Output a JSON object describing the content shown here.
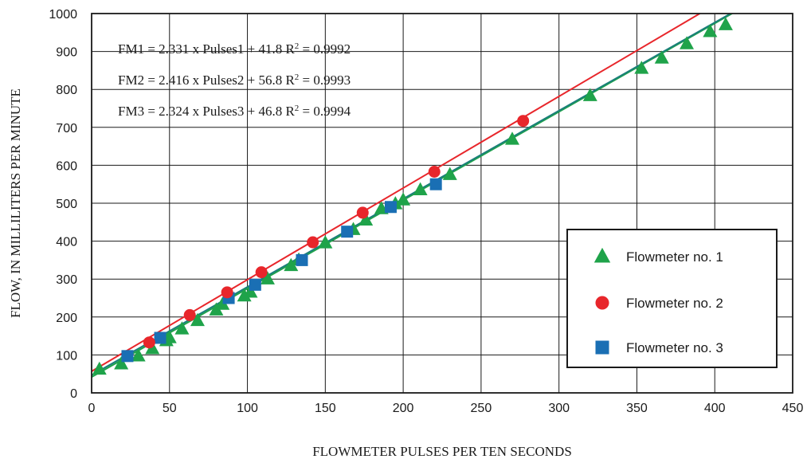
{
  "chart_data": {
    "type": "scatter",
    "title": "",
    "xlabel": "FLOWMETER PULSES PER TEN SECONDS",
    "ylabel": "FLOW, IN MILLILITERS PER MINUTE",
    "xlim": [
      0,
      450
    ],
    "ylim": [
      0,
      1000
    ],
    "x_ticks": [
      "0",
      "50",
      "100",
      "150",
      "200",
      "250",
      "300",
      "350",
      "400",
      "450"
    ],
    "y_ticks": [
      "0",
      "100",
      "200",
      "300",
      "400",
      "500",
      "600",
      "700",
      "800",
      "900",
      "1000"
    ],
    "grid": true,
    "legend_position": "bottom-right",
    "equations": [
      {
        "main": "FM1 = 2.331 x Pulses1 + 41.8  R",
        "sup": "2",
        "tail": " = 0.9992"
      },
      {
        "main": "FM2 = 2.416 x Pulses2 + 56.8  R",
        "sup": "2",
        "tail": " = 0.9993"
      },
      {
        "main": "FM3 = 2.324 x Pulses3 + 46.8  R",
        "sup": "2",
        "tail": " = 0.9994"
      }
    ],
    "series": [
      {
        "name": "Flowmeter no. 1",
        "marker": "triangle",
        "color": "#1fa34a",
        "fit": {
          "slope": 2.331,
          "intercept": 41.8
        },
        "fit_color": "#1fa34a",
        "points": [
          [
            5,
            62
          ],
          [
            19,
            76
          ],
          [
            30,
            97
          ],
          [
            39,
            116
          ],
          [
            48,
            137
          ],
          [
            50,
            145
          ],
          [
            58,
            168
          ],
          [
            68,
            190
          ],
          [
            80,
            218
          ],
          [
            84,
            233
          ],
          [
            98,
            255
          ],
          [
            102,
            265
          ],
          [
            113,
            300
          ],
          [
            128,
            335
          ],
          [
            133,
            350
          ],
          [
            150,
            395
          ],
          [
            168,
            430
          ],
          [
            176,
            455
          ],
          [
            186,
            485
          ],
          [
            195,
            498
          ],
          [
            200,
            508
          ],
          [
            211,
            535
          ],
          [
            230,
            575
          ],
          [
            270,
            668
          ],
          [
            320,
            783
          ],
          [
            353,
            855
          ],
          [
            366,
            882
          ],
          [
            382,
            920
          ],
          [
            397,
            952
          ],
          [
            407,
            970
          ]
        ]
      },
      {
        "name": "Flowmeter no. 2",
        "marker": "circle",
        "color": "#e8262b",
        "fit": {
          "slope": 2.416,
          "intercept": 56.8
        },
        "fit_color": "#e8262b",
        "points": [
          [
            37,
            133
          ],
          [
            63,
            205
          ],
          [
            87,
            265
          ],
          [
            109,
            318
          ],
          [
            142,
            397
          ],
          [
            174,
            475
          ],
          [
            220,
            583
          ],
          [
            277,
            717
          ]
        ]
      },
      {
        "name": "Flowmeter no. 3",
        "marker": "square",
        "color": "#1a6fb4",
        "fit": {
          "slope": 2.324,
          "intercept": 46.8
        },
        "fit_color": "#1a7f7a",
        "points": [
          [
            23,
            97
          ],
          [
            44,
            145
          ],
          [
            88,
            250
          ],
          [
            105,
            285
          ],
          [
            135,
            350
          ],
          [
            164,
            425
          ],
          [
            192,
            490
          ],
          [
            221,
            550
          ]
        ]
      }
    ]
  }
}
